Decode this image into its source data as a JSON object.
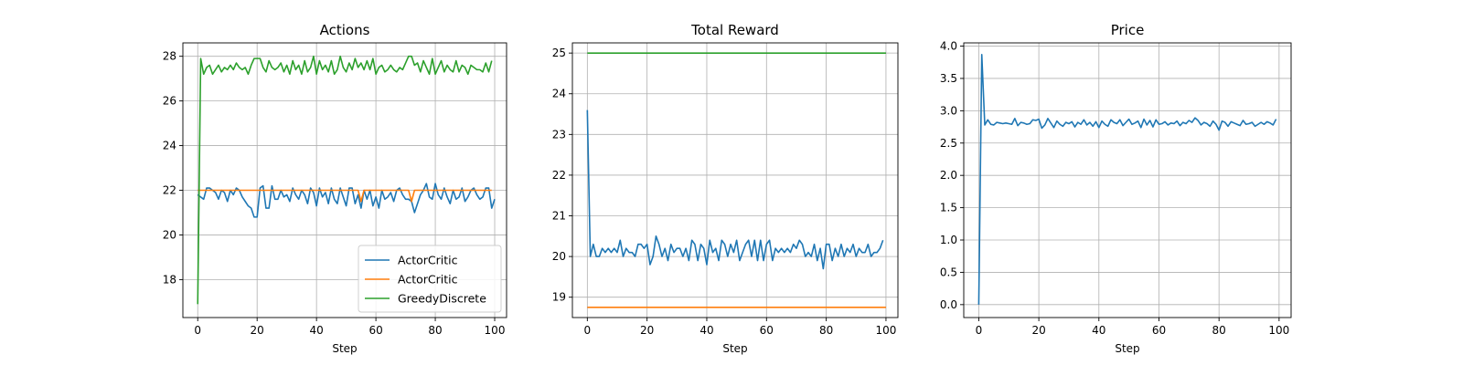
{
  "chart_data": [
    {
      "type": "line",
      "title": "Actions",
      "xlabel": "Step",
      "ylabel": "",
      "xlim": [
        -5,
        104
      ],
      "ylim": [
        16.3,
        28.6
      ],
      "xticks": [
        0,
        20,
        40,
        60,
        80,
        100
      ],
      "yticks": [
        18,
        20,
        22,
        24,
        26,
        28
      ],
      "grid": true,
      "legend": "lower-right",
      "series": [
        {
          "name": "ActorCritic",
          "color": "#1f77b4",
          "y": [
            21.8,
            21.7,
            21.6,
            22.1,
            22.1,
            22.0,
            21.9,
            21.6,
            22.0,
            21.9,
            21.5,
            22.0,
            21.8,
            22.1,
            22.0,
            21.7,
            21.5,
            21.3,
            21.2,
            20.8,
            20.8,
            22.1,
            22.2,
            21.2,
            21.2,
            22.2,
            21.6,
            21.6,
            22.0,
            21.7,
            21.8,
            21.5,
            22.1,
            21.8,
            21.6,
            22.0,
            21.8,
            21.4,
            22.1,
            21.9,
            21.3,
            22.1,
            21.7,
            21.9,
            21.4,
            22.1,
            21.6,
            21.4,
            22.1,
            21.7,
            21.3,
            22.1,
            22.1,
            21.4,
            21.8,
            21.2,
            22.0,
            21.6,
            22.0,
            21.3,
            21.7,
            21.2,
            22.0,
            21.6,
            21.7,
            21.9,
            21.5,
            22.0,
            22.1,
            21.8,
            21.6,
            21.6,
            21.5,
            21.0,
            21.4,
            21.8,
            22.0,
            22.3,
            21.7,
            21.6,
            22.3,
            21.8,
            21.6,
            22.1,
            21.7,
            21.4,
            22.0,
            21.6,
            21.7,
            22.1,
            21.5,
            21.7,
            22.0,
            22.1,
            21.8,
            21.6,
            21.7,
            22.1,
            22.1,
            21.2,
            21.6
          ],
          "x_start": 0
        },
        {
          "name": "ActorCritic",
          "color": "#ff7f0e",
          "y": [
            22,
            22,
            22,
            22,
            22,
            22,
            22,
            22,
            22,
            22,
            22,
            22,
            22,
            22,
            22,
            22,
            22,
            22,
            22,
            22,
            22,
            22,
            22,
            22,
            22,
            22,
            22,
            22,
            22,
            22,
            22,
            22,
            22,
            22,
            22,
            22,
            22,
            22,
            22,
            22,
            22,
            22,
            22,
            22,
            22,
            22,
            22,
            22,
            22,
            22,
            22,
            22,
            22,
            22,
            22,
            21.5,
            22,
            22,
            22,
            22,
            22,
            22,
            22,
            22,
            22,
            22,
            22,
            22,
            22,
            22,
            22,
            22,
            21.5,
            22,
            22,
            22,
            22,
            22,
            22,
            22,
            22,
            22,
            22,
            22,
            22,
            22,
            22,
            22,
            22,
            22,
            22,
            22,
            22,
            22,
            22,
            22,
            22,
            22,
            22,
            22
          ],
          "x_start": 0
        },
        {
          "name": "GreedyDiscrete",
          "color": "#2ca02c",
          "y": [
            16.9,
            27.9,
            27.2,
            27.5,
            27.6,
            27.2,
            27.4,
            27.6,
            27.3,
            27.5,
            27.4,
            27.6,
            27.4,
            27.7,
            27.5,
            27.4,
            27.5,
            27.2,
            27.6,
            27.9,
            27.9,
            27.9,
            27.5,
            27.3,
            27.8,
            27.5,
            27.4,
            27.5,
            27.7,
            27.3,
            27.6,
            27.2,
            27.8,
            27.4,
            27.6,
            27.2,
            27.8,
            27.3,
            27.5,
            28.0,
            27.2,
            27.8,
            27.4,
            27.6,
            27.3,
            27.8,
            27.2,
            27.4,
            28.0,
            27.5,
            27.3,
            27.7,
            27.4,
            27.9,
            27.5,
            27.7,
            27.4,
            27.8,
            27.4,
            27.9,
            27.2,
            27.5,
            27.6,
            27.3,
            27.4,
            27.6,
            27.4,
            27.3,
            27.5,
            27.4,
            27.7,
            28.0,
            28.0,
            27.6,
            27.7,
            27.3,
            27.8,
            27.5,
            27.2,
            27.9,
            27.2,
            27.5,
            27.8,
            27.3,
            27.6,
            27.4,
            27.3,
            27.8,
            27.3,
            27.6,
            27.5,
            27.2,
            27.6,
            27.5,
            27.4,
            27.4,
            27.3,
            27.7,
            27.3,
            27.8
          ],
          "x_start": 0
        }
      ]
    },
    {
      "type": "line",
      "title": "Total Reward",
      "xlabel": "Step",
      "ylabel": "",
      "xlim": [
        -5,
        104
      ],
      "ylim": [
        18.5,
        25.25
      ],
      "xticks": [
        0,
        20,
        40,
        60,
        80,
        100
      ],
      "yticks": [
        19,
        20,
        21,
        22,
        23,
        24,
        25
      ],
      "grid": true,
      "series": [
        {
          "name": "",
          "color": "#1f77b4",
          "y": [
            23.6,
            20.0,
            20.3,
            20.0,
            20.0,
            20.2,
            20.1,
            20.2,
            20.1,
            20.2,
            20.1,
            20.4,
            20.0,
            20.2,
            20.1,
            20.1,
            20.0,
            20.3,
            20.3,
            20.2,
            20.3,
            19.8,
            20.0,
            20.5,
            20.3,
            20.0,
            20.2,
            19.9,
            20.3,
            20.1,
            20.2,
            20.2,
            20.0,
            20.2,
            19.9,
            20.4,
            20.3,
            19.9,
            20.3,
            20.2,
            19.8,
            20.4,
            20.1,
            20.2,
            19.9,
            20.4,
            20.3,
            20.0,
            20.3,
            20.1,
            20.4,
            19.9,
            20.1,
            20.3,
            20.4,
            20.0,
            20.4,
            19.9,
            20.4,
            19.9,
            20.3,
            20.4,
            19.9,
            20.2,
            20.1,
            20.2,
            20.1,
            20.2,
            20.1,
            20.3,
            20.2,
            20.4,
            20.3,
            20.0,
            20.1,
            20.0,
            20.3,
            19.9,
            20.2,
            19.7,
            20.3,
            20.3,
            19.9,
            20.2,
            20.0,
            20.3,
            20.0,
            20.2,
            20.1,
            20.3,
            20.0,
            20.2,
            20.1,
            20.1,
            20.3,
            20.0,
            20.1,
            20.1,
            20.2,
            20.4
          ],
          "x_start": 0
        },
        {
          "name": "",
          "color": "#ff7f0e",
          "x": [
            0,
            100
          ],
          "y": [
            18.75,
            18.75
          ]
        },
        {
          "name": "",
          "color": "#2ca02c",
          "x": [
            0,
            100
          ],
          "y": [
            25.0,
            25.0
          ]
        }
      ]
    },
    {
      "type": "line",
      "title": "Price",
      "xlabel": "Step",
      "ylabel": "",
      "xlim": [
        -5,
        104
      ],
      "ylim": [
        -0.2,
        4.05
      ],
      "xticks": [
        0,
        20,
        40,
        60,
        80,
        100
      ],
      "yticks": [
        0.0,
        0.5,
        1.0,
        1.5,
        2.0,
        2.5,
        3.0,
        3.5,
        4.0
      ],
      "ytick_labels": [
        "0.0",
        "0.5",
        "1.0",
        "1.5",
        "2.0",
        "2.5",
        "3.0",
        "3.5",
        "4.0"
      ],
      "grid": true,
      "series": [
        {
          "name": "",
          "color": "#1f77b4",
          "y": [
            0.0,
            3.87,
            2.78,
            2.86,
            2.79,
            2.78,
            2.82,
            2.81,
            2.8,
            2.81,
            2.8,
            2.79,
            2.88,
            2.77,
            2.82,
            2.81,
            2.79,
            2.8,
            2.86,
            2.85,
            2.87,
            2.73,
            2.78,
            2.88,
            2.81,
            2.74,
            2.84,
            2.79,
            2.76,
            2.82,
            2.8,
            2.83,
            2.75,
            2.82,
            2.79,
            2.86,
            2.78,
            2.82,
            2.76,
            2.83,
            2.74,
            2.84,
            2.79,
            2.76,
            2.86,
            2.82,
            2.8,
            2.86,
            2.77,
            2.82,
            2.87,
            2.79,
            2.81,
            2.84,
            2.74,
            2.87,
            2.78,
            2.85,
            2.75,
            2.86,
            2.79,
            2.8,
            2.83,
            2.78,
            2.81,
            2.8,
            2.84,
            2.77,
            2.82,
            2.8,
            2.85,
            2.82,
            2.89,
            2.85,
            2.78,
            2.82,
            2.8,
            2.76,
            2.84,
            2.79,
            2.7,
            2.84,
            2.82,
            2.76,
            2.83,
            2.81,
            2.79,
            2.77,
            2.85,
            2.79,
            2.8,
            2.82,
            2.76,
            2.79,
            2.82,
            2.79,
            2.83,
            2.81,
            2.78,
            2.87
          ],
          "x_start": 0
        }
      ]
    }
  ]
}
